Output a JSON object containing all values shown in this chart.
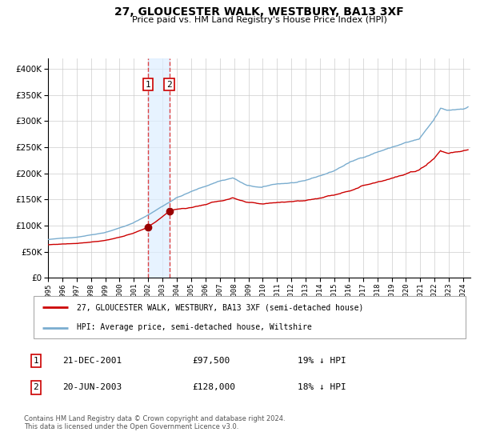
{
  "title": "27, GLOUCESTER WALK, WESTBURY, BA13 3XF",
  "subtitle": "Price paid vs. HM Land Registry's House Price Index (HPI)",
  "legend_red": "27, GLOUCESTER WALK, WESTBURY, BA13 3XF (semi-detached house)",
  "legend_blue": "HPI: Average price, semi-detached house, Wiltshire",
  "transaction1_label": "1",
  "transaction1_date": "21-DEC-2001",
  "transaction1_price": "£97,500",
  "transaction1_hpi": "19% ↓ HPI",
  "transaction2_label": "2",
  "transaction2_date": "20-JUN-2003",
  "transaction2_price": "£128,000",
  "transaction2_hpi": "18% ↓ HPI",
  "footnote1": "Contains HM Land Registry data © Crown copyright and database right 2024.",
  "footnote2": "This data is licensed under the Open Government Licence v3.0.",
  "red_color": "#cc0000",
  "blue_color": "#7aadcf",
  "marker_color": "#990000",
  "vline_color": "#dd4444",
  "shading_color": "#ddeeff",
  "grid_color": "#cccccc",
  "background_color": "#ffffff",
  "ylim": [
    0,
    420000
  ],
  "yticks": [
    0,
    50000,
    100000,
    150000,
    200000,
    250000,
    300000,
    350000,
    400000
  ],
  "transaction1_x": 2001.97,
  "transaction1_y": 97500,
  "transaction2_x": 2003.47,
  "transaction2_y": 128000,
  "xmin": 1995.0,
  "xmax": 2024.5
}
